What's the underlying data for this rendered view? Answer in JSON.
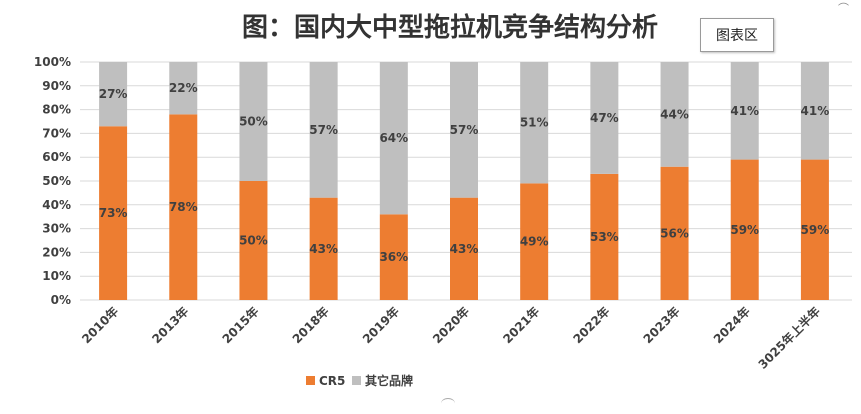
{
  "title": "图：国内大中型拖拉机竞争结构分析",
  "tag_label": "图表区",
  "corner_mark": "⌒",
  "chart_data": {
    "type": "bar",
    "stacked": true,
    "categories": [
      "2010年",
      "2013年",
      "2015年",
      "2018年",
      "2019年",
      "2020年",
      "2021年",
      "2022年",
      "2023年",
      "2024年",
      "3025年上半年"
    ],
    "series": [
      {
        "name": "CR5",
        "color": "#ED7D31",
        "values": [
          73,
          78,
          50,
          43,
          36,
          43,
          49,
          53,
          56,
          59,
          59
        ]
      },
      {
        "name": "其它品牌",
        "color": "#BFBFBF",
        "values": [
          27,
          22,
          50,
          57,
          64,
          57,
          51,
          47,
          44,
          41,
          41
        ]
      }
    ],
    "yticks": [
      "0%",
      "10%",
      "20%",
      "30%",
      "40%",
      "50%",
      "60%",
      "70%",
      "80%",
      "90%",
      "100%"
    ],
    "ylim": [
      0,
      100
    ],
    "grid": true,
    "legend_position": "bottom",
    "data_label_suffix": "%"
  }
}
